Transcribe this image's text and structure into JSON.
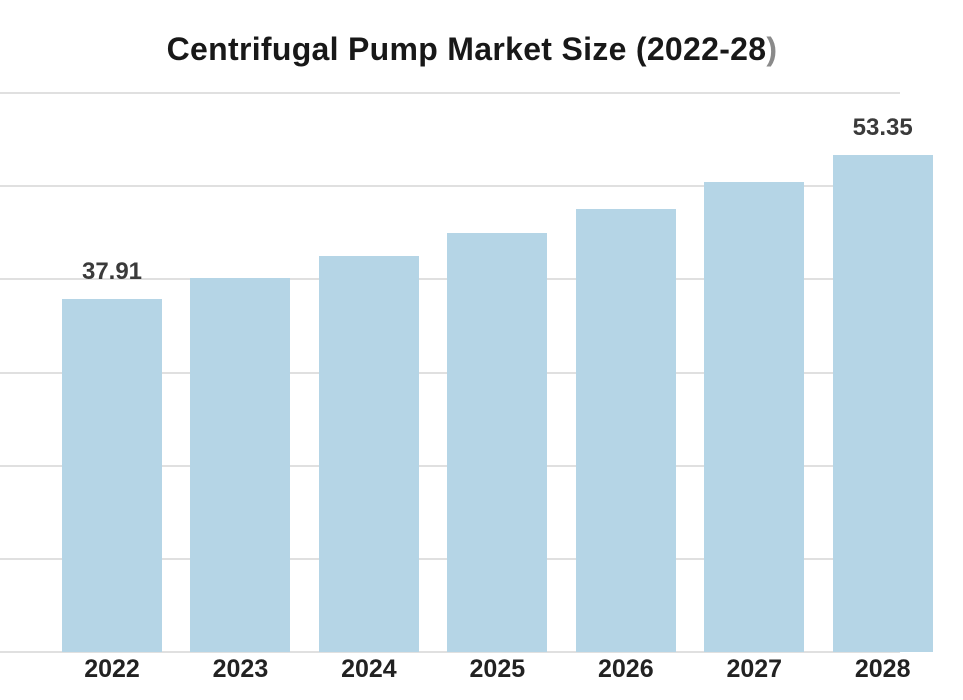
{
  "title": {
    "main": "Centrifugal Pump Market Size (2022-28",
    "paren_suffix": ")"
  },
  "colors": {
    "background": "#ffffff",
    "bar_fill": "#b5d5e6",
    "gridline": "#e0e0e0",
    "title_text": "#181818",
    "title_paren": "#8a8a8a",
    "value_label": "#3a3a3a",
    "axis_label": "#222222"
  },
  "chart_data": {
    "type": "bar",
    "title": "Centrifugal Pump Market Size (2022-28)",
    "categories": [
      "2022",
      "2023",
      "2024",
      "2025",
      "2026",
      "2027",
      "2028"
    ],
    "values": [
      37.91,
      40.1,
      42.5,
      45.0,
      47.6,
      50.4,
      53.35
    ],
    "value_labels": [
      "37.91",
      "",
      "",
      "",
      "",
      "",
      "53.35"
    ],
    "xlabel": "",
    "ylabel": "",
    "ylim": [
      0,
      60
    ],
    "grid_step": 10,
    "grid": true,
    "legend": false,
    "bar_color": "#b5d5e6"
  }
}
